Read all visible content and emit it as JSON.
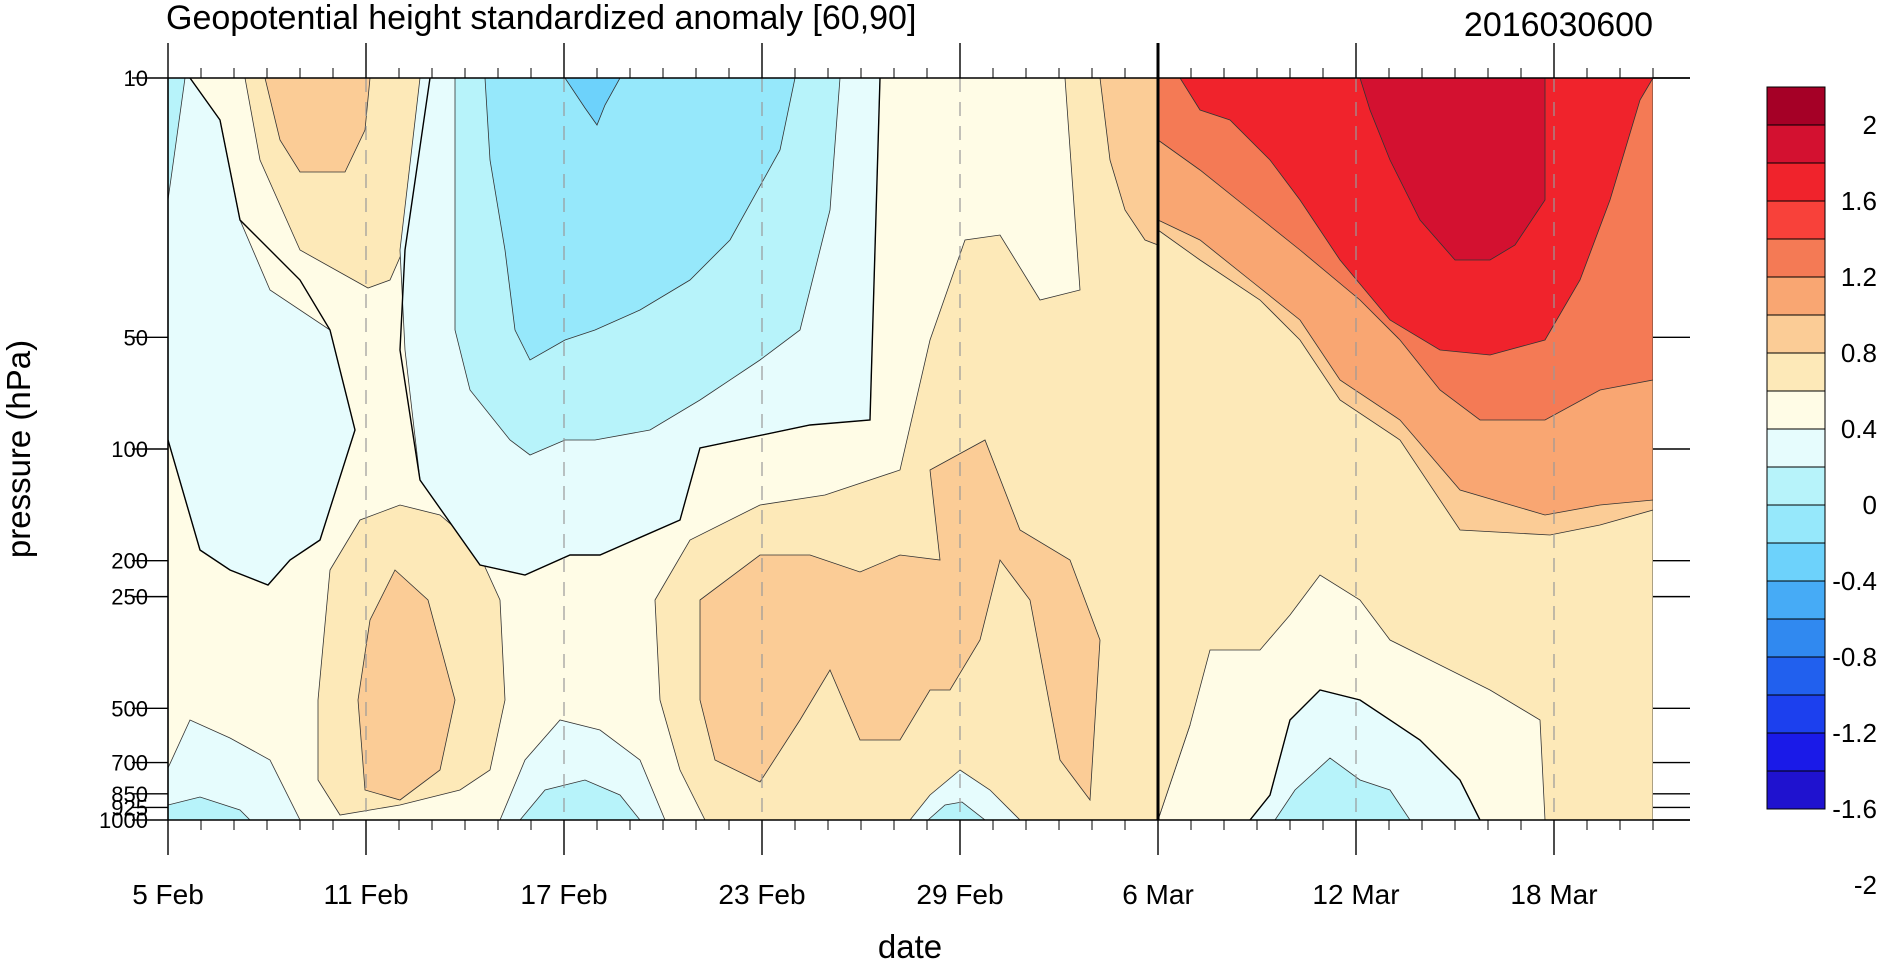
{
  "chart_data": {
    "type": "contour",
    "title": "Geopotential height standardized anomaly [60,90]",
    "run_label": "2016030600",
    "xlabel": "date",
    "ylabel": "pressure (hPa)",
    "x_tick_labels": [
      "5 Feb",
      "11 Feb",
      "17 Feb",
      "23 Feb",
      "29 Feb",
      "6 Mar",
      "12 Mar",
      "18 Mar"
    ],
    "x_start": "2016-02-05",
    "x_end": "2016-03-21",
    "analysis_date": "2016-03-06",
    "y_ticks": [
      {
        "p": 10,
        "label": "10"
      },
      {
        "p": 50,
        "label": "50"
      },
      {
        "p": 100,
        "label": "100"
      },
      {
        "p": 200,
        "label": "200"
      },
      {
        "p": 250,
        "label": "250"
      },
      {
        "p": 500,
        "label": "500"
      },
      {
        "p": 700,
        "label": "700"
      },
      {
        "p": 850,
        "label": "850"
      },
      {
        "p": 925,
        "label": "925"
      },
      {
        "p": 1000,
        "label": "1000"
      }
    ],
    "ylim": [
      1000,
      10
    ],
    "y_scale": "log",
    "colorbar": {
      "labels": [
        "2",
        "1.6",
        "1.2",
        "0.8",
        "0.4",
        "0",
        "-0.4",
        "-0.8",
        "-1.2",
        "-1.6",
        "-2"
      ],
      "colors": [
        "#a50026",
        "#d31130",
        "#f0232c",
        "#f8413a",
        "#f47a55",
        "#f9a672",
        "#fbcc96",
        "#fde9b8",
        "#fffce6",
        "#e6fcfd",
        "#b7f3fa",
        "#96e8fb",
        "#6dd2fb",
        "#46abf6",
        "#3089f0",
        "#2160ee",
        "#1c40ee",
        "#1a1ae8",
        "#1f12cf"
      ]
    },
    "contour_fills": [
      {
        "level": "0 to 0.4",
        "color": "#fffce6"
      },
      {
        "level": "0.4 to 0.8",
        "color": "#fde9b8"
      },
      {
        "level": "0.8 to 1.2",
        "color": "#fbcc96"
      },
      {
        "level": "1.2 to 1.6",
        "color": "#f9a672"
      },
      {
        "level": "1.6 to 2",
        "color": "#f47a55"
      },
      {
        "level": "> 2",
        "color": "#f0232c"
      },
      {
        "level": "0 to -0.4",
        "color": "#e6fcfd"
      },
      {
        "level": "-0.4 to -0.8",
        "color": "#b7f3fa"
      },
      {
        "level": "-0.8 to -1.2",
        "color": "#96e8fb"
      },
      {
        "level": "-1.2 to -1.6",
        "color": "#6dd2fb"
      }
    ]
  }
}
